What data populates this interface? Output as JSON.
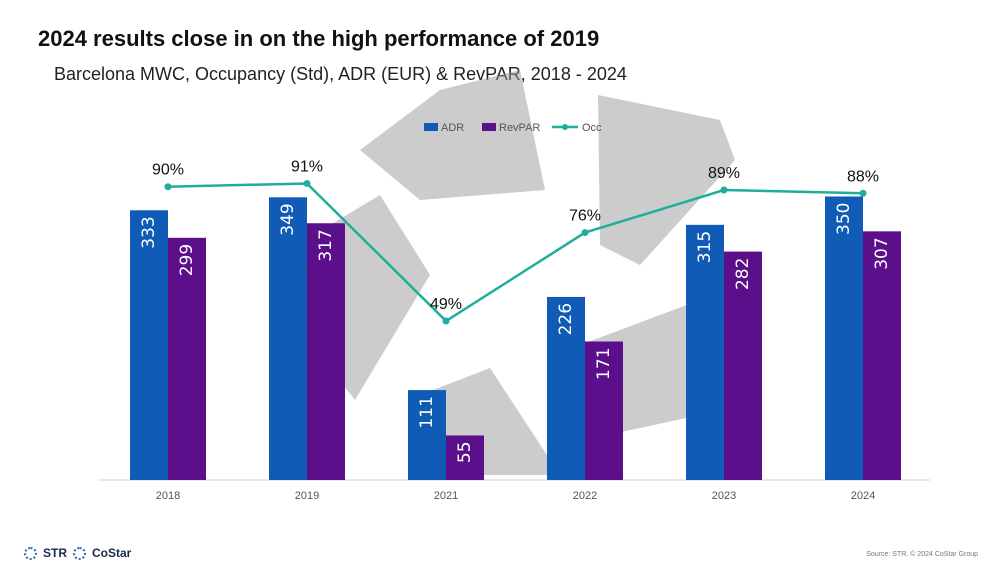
{
  "title": "2024 results close in on the high performance of 2019",
  "subtitle": "Barcelona MWC, Occupancy (Std), ADR (EUR) & RevPAR, 2018 - 2024",
  "chart_data": {
    "type": "bar",
    "categories": [
      "2018",
      "2019",
      "2021",
      "2022",
      "2023",
      "2024"
    ],
    "series": [
      {
        "name": "ADR",
        "values": [
          333,
          349,
          111,
          226,
          315,
          350
        ],
        "color": "#0f5bb5"
      },
      {
        "name": "RevPAR",
        "values": [
          299,
          317,
          55,
          171,
          282,
          307
        ],
        "color": "#5c0f8b"
      },
      {
        "name": "Occ",
        "type": "line",
        "values": [
          90,
          91,
          49,
          76,
          89,
          88
        ],
        "labels": [
          "90%",
          "91%",
          "49%",
          "76%",
          "89%",
          "88%"
        ],
        "color": "#1fae9b"
      }
    ],
    "legend_position": "top-center"
  },
  "footer": {
    "logo_1": "STR",
    "logo_2": "CoStar",
    "source": "Source: STR. © 2024 CoStar Group"
  }
}
